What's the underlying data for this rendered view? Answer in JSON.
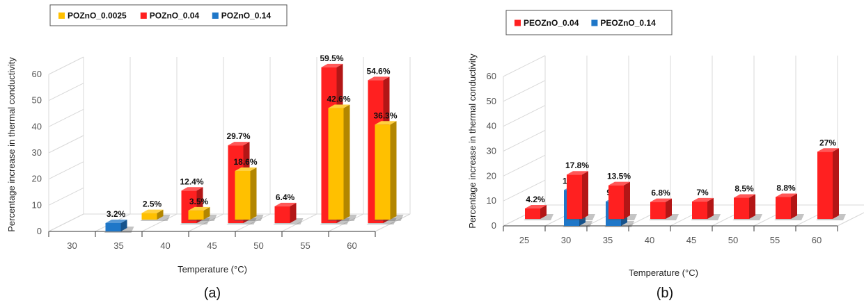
{
  "chart_data": [
    {
      "type": "bar",
      "panel_caption": "(a)",
      "xlabel": "Temperature (°C)",
      "ylabel": "Percentage increase in thermal conductivity",
      "categories": [
        "30",
        "35",
        "40",
        "45",
        "50",
        "55",
        "60"
      ],
      "ylim": [
        0,
        60
      ],
      "yticks": [
        "0",
        "10",
        "20",
        "30",
        "40",
        "50",
        "60"
      ],
      "legend_position": "top-left",
      "grid": true,
      "series": [
        {
          "name": "POZnO_0.0025",
          "color": "#FFC000",
          "values": [
            null,
            2.5,
            3.5,
            18.6,
            null,
            42.6,
            36.3
          ],
          "labels": [
            "",
            "2.5%",
            "3.5%",
            "18.6%",
            "",
            "42.6%",
            "36.3%"
          ]
        },
        {
          "name": "POZnO_0.04",
          "color": "#FF2020",
          "values": [
            null,
            null,
            12.4,
            29.7,
            6.4,
            59.5,
            54.6
          ],
          "labels": [
            "",
            "",
            "12.4%",
            "29.7%",
            "6.4%",
            "59.5%",
            "54.6%"
          ]
        },
        {
          "name": "POZnO_0.14",
          "color": "#1F77C8",
          "values": [
            null,
            3.2,
            null,
            null,
            null,
            null,
            null
          ],
          "labels": [
            "",
            "3.2%",
            "",
            "",
            "",
            "",
            ""
          ]
        }
      ]
    },
    {
      "type": "bar",
      "panel_caption": "(b)",
      "xlabel": "Temperature (°C)",
      "ylabel": "Percentage increase in thermal conductivity",
      "categories": [
        "25",
        "30",
        "35",
        "40",
        "45",
        "50",
        "55",
        "60"
      ],
      "ylim": [
        0,
        60
      ],
      "yticks": [
        "0",
        "10",
        "20",
        "30",
        "40",
        "50",
        "60"
      ],
      "legend_position": "top-left",
      "grid": true,
      "series": [
        {
          "name": "PEOZnO_0.04",
          "color": "#FF2020",
          "values": [
            4.2,
            17.8,
            13.5,
            6.8,
            7,
            8.5,
            8.8,
            27
          ],
          "labels": [
            "4.2%",
            "17.8%",
            "13.5%",
            "6.8%",
            "7%",
            "8.5%",
            "8.8%",
            "27%"
          ]
        },
        {
          "name": "PEOZnO_0.14",
          "color": "#1F77C8",
          "values": [
            null,
            14.4,
            9.8,
            null,
            null,
            null,
            null,
            null
          ],
          "labels": [
            "",
            "14.4%",
            "9.8%",
            "",
            "",
            "",
            "",
            ""
          ]
        }
      ]
    }
  ]
}
